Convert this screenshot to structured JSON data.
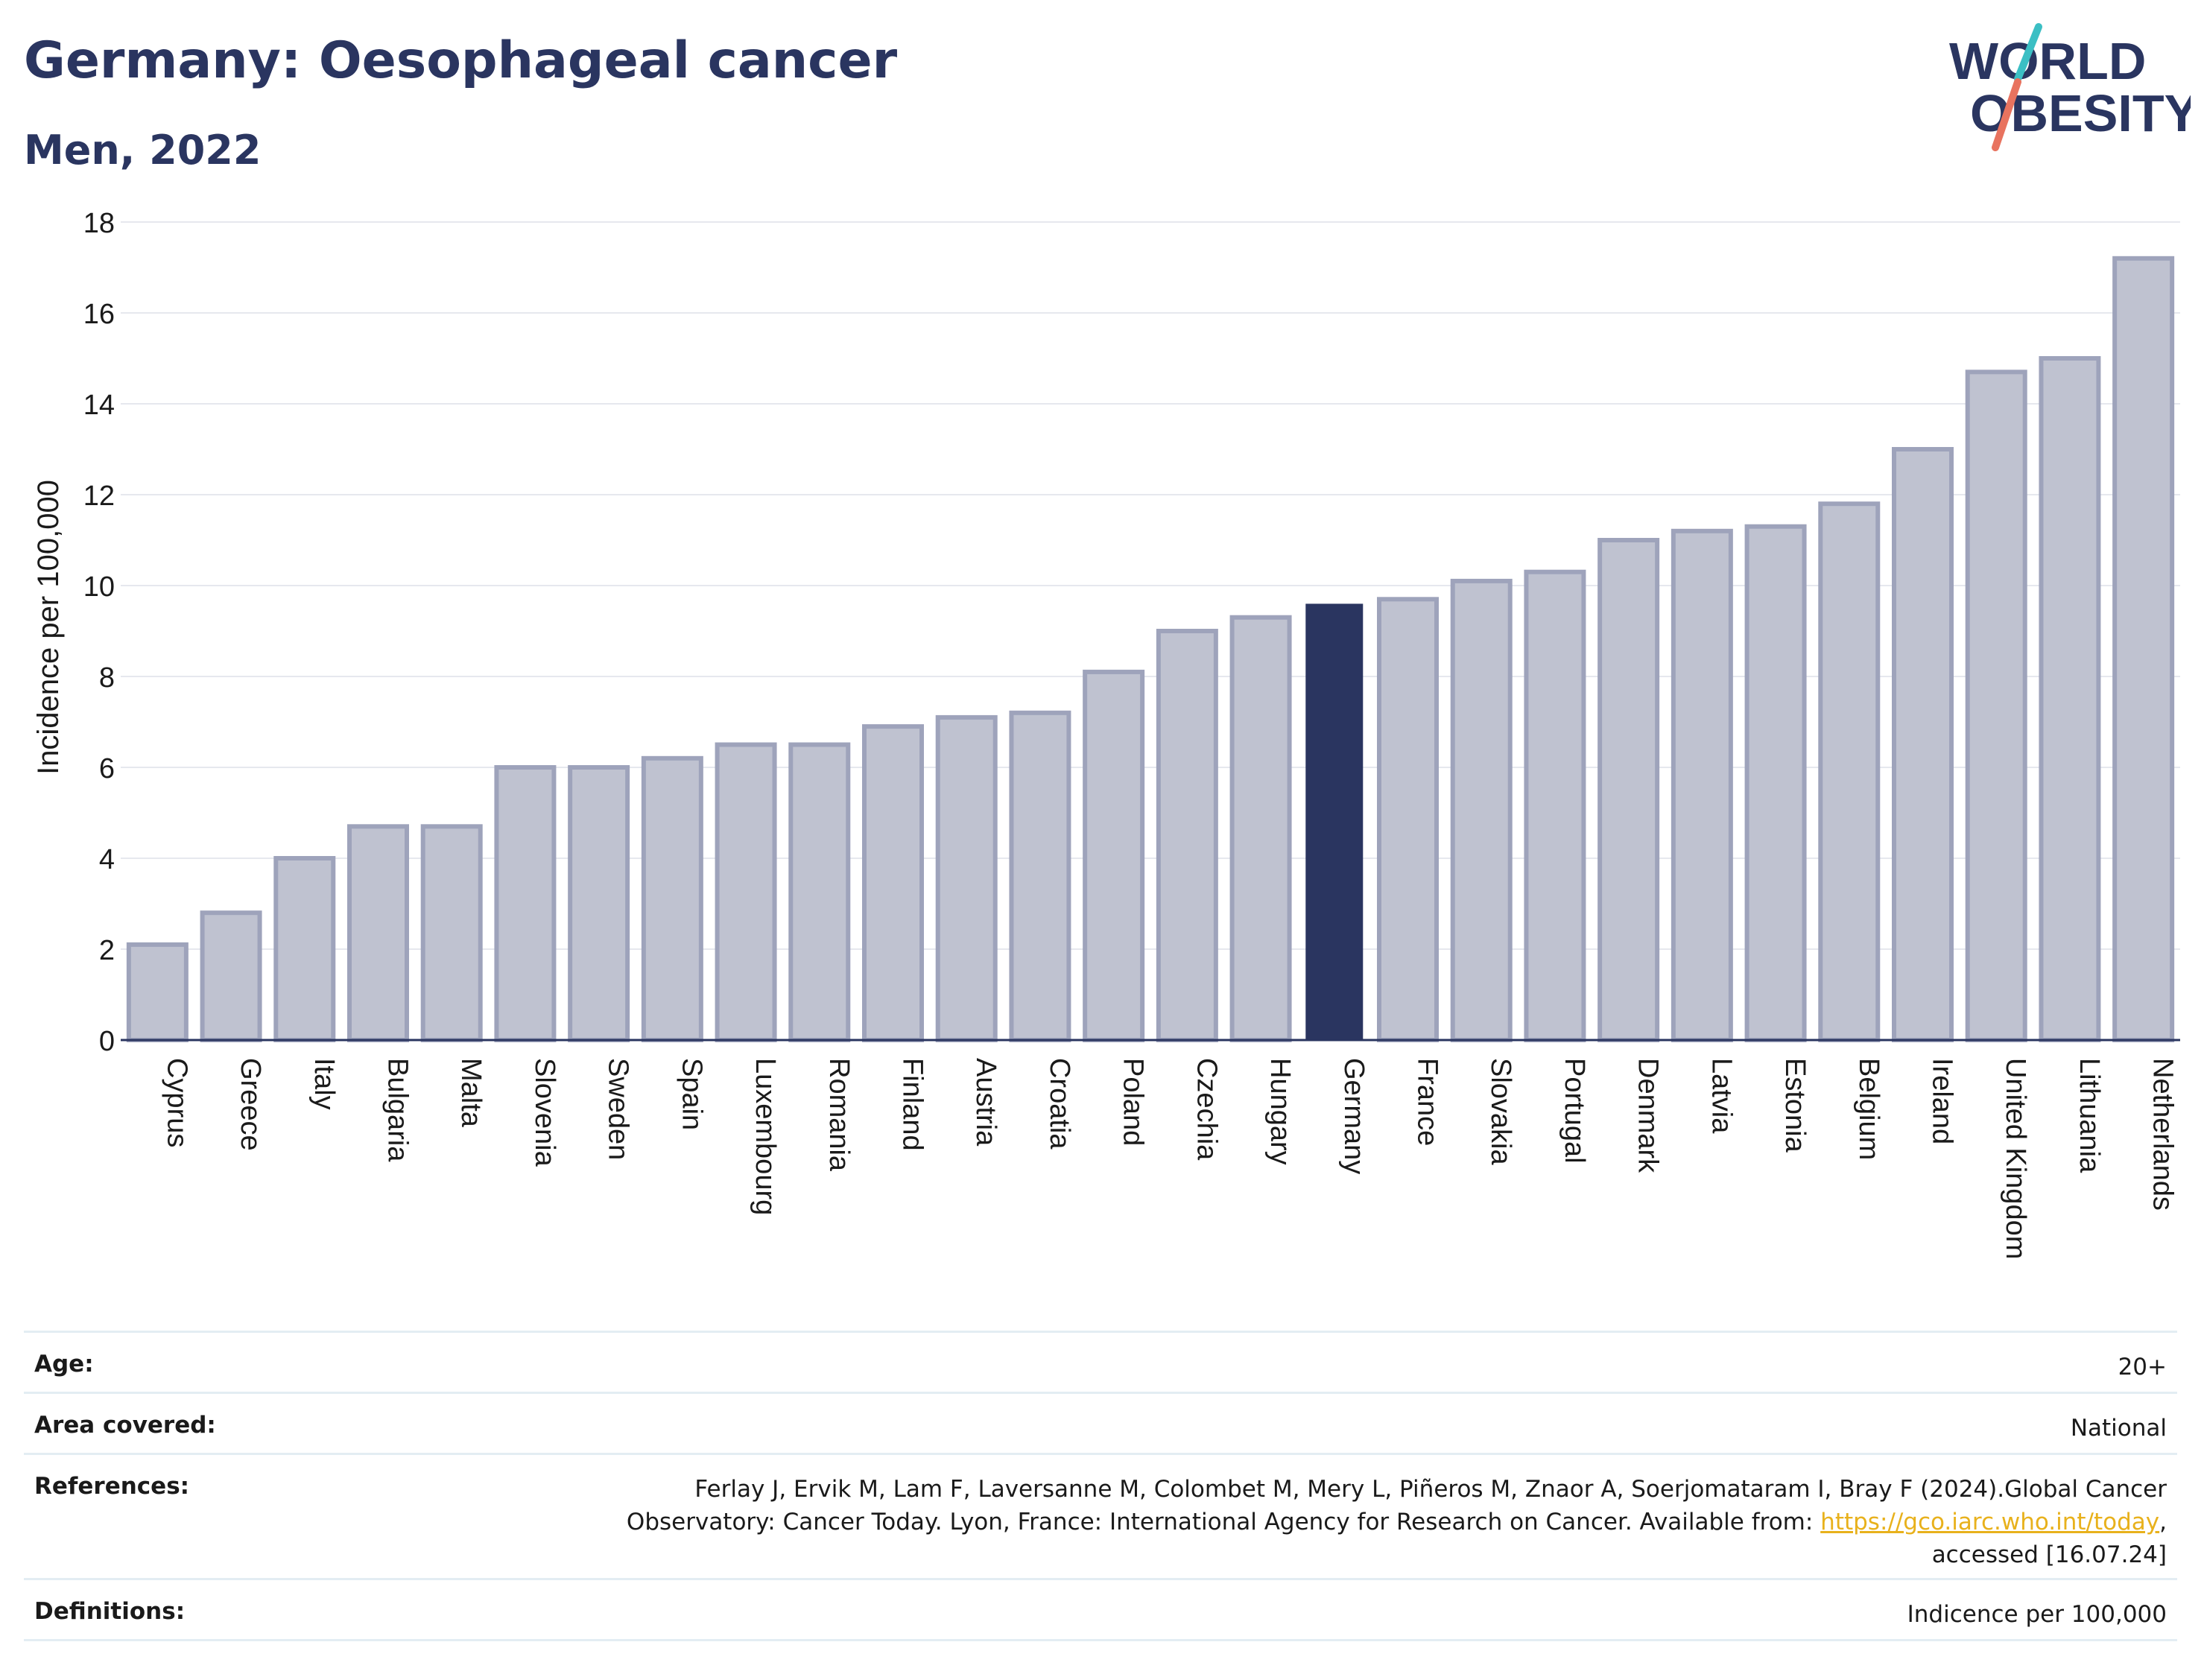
{
  "header": {
    "title": "Germany: Oesophageal cancer",
    "subtitle": "Men, 2022"
  },
  "logo": {
    "line1": "WORLD",
    "line2": "OBESITY",
    "colors": {
      "text": "#2a3560",
      "slash_top": "#3bbfc4",
      "slash_bottom": "#e8735f"
    }
  },
  "chart_data": {
    "type": "bar",
    "ylabel": "Incidence per 100,000",
    "xlabel": "",
    "ylim": [
      0,
      18
    ],
    "yticks": [
      0,
      2,
      4,
      6,
      8,
      10,
      12,
      14,
      16,
      18
    ],
    "grid": true,
    "highlight": "Germany",
    "colors": {
      "bar": "#bfc2d0",
      "bar_edge": "#9ea3bb",
      "highlight": "#2a3560"
    },
    "categories": [
      "Cyprus",
      "Greece",
      "Italy",
      "Bulgaria",
      "Malta",
      "Slovenia",
      "Sweden",
      "Spain",
      "Luxembourg",
      "Romania",
      "Finland",
      "Austria",
      "Croatia",
      "Poland",
      "Czechia",
      "Hungary",
      "Germany",
      "France",
      "Slovakia",
      "Portugal",
      "Denmark",
      "Latvia",
      "Estonia",
      "Belgium",
      "Ireland",
      "United Kingdom",
      "Lithuania",
      "Netherlands"
    ],
    "values": [
      2.1,
      2.8,
      4.0,
      4.7,
      4.7,
      6.0,
      6.0,
      6.2,
      6.5,
      6.5,
      6.9,
      7.1,
      7.2,
      8.1,
      9.0,
      9.3,
      9.6,
      9.7,
      10.1,
      10.3,
      11.0,
      11.2,
      11.3,
      11.8,
      13.0,
      14.7,
      15.0,
      17.2
    ]
  },
  "footer": {
    "age_label": "Age:",
    "age_value": "20+",
    "area_label": "Area covered:",
    "area_value": "National",
    "references_label": "References:",
    "references_line1": "Ferlay J, Ervik M, Lam F, Laversanne M, Colombet M, Mery L, Piñeros M, Znaor A, Soerjomataram I, Bray F (2024).Global Cancer",
    "references_line2": "Observatory: Cancer Today. Lyon, France: International Agency for Research on Cancer. Available from:",
    "references_link": "https://gco.iarc.who.int/today",
    "references_line2_end": ",",
    "references_line3": "accessed [16.07.24]",
    "definitions_label": "Definitions:",
    "definitions_value": "Indicence per 100,000"
  }
}
